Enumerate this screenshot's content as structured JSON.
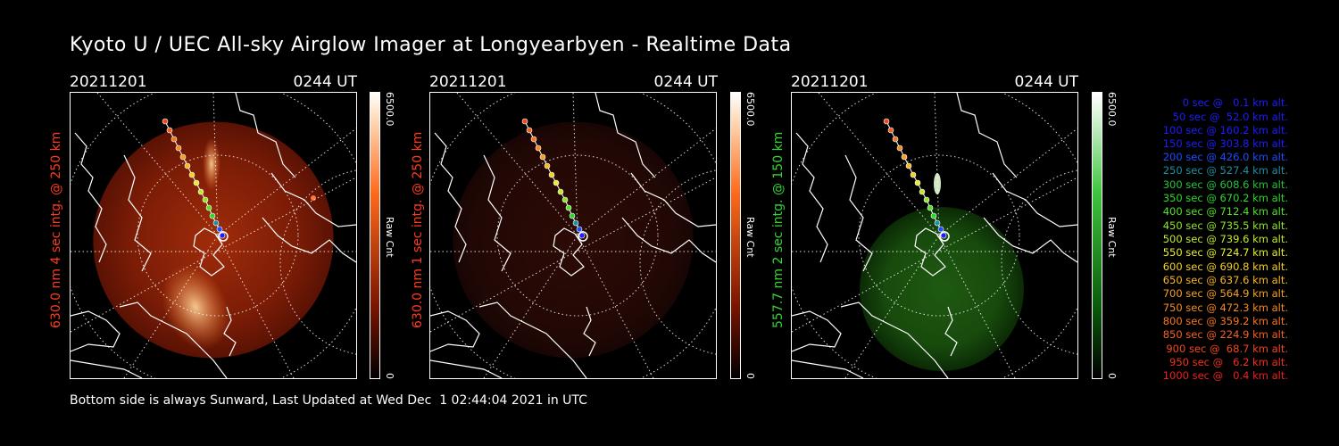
{
  "title": "Kyoto U / UEC All-sky Airglow Imager at Longyearbyen - Realtime Data",
  "footer": "Bottom side is always Sunward, Last Updated at Wed Dec  1 02:44:04 2021 in UTC",
  "panels": [
    {
      "date": "20211201",
      "time": "0244 UT",
      "label": "630.0 nm 4 sec intg. @ 250 km",
      "label_color": "#ff3b1f",
      "cbar_max": "6500.0",
      "cbar_min": "0",
      "cbar_unit": "Raw Cnt",
      "colormap": "red",
      "intensity": "bright"
    },
    {
      "date": "20211201",
      "time": "0244 UT",
      "label": "630.0 nm 1 sec intg. @ 250 km",
      "label_color": "#ff3b1f",
      "cbar_max": "6500.0",
      "cbar_min": "0",
      "cbar_unit": "Raw Cnt",
      "colormap": "red",
      "intensity": "dim"
    },
    {
      "date": "20211201",
      "time": "0244 UT",
      "label": "557.7 nm 2 sec intg. @ 150 km",
      "label_color": "#35d435",
      "cbar_max": "6500.0",
      "cbar_min": "0",
      "cbar_unit": "Raw Cnt",
      "colormap": "green",
      "intensity": "dim"
    }
  ],
  "legend": [
    {
      "text": "0 sec @   0.1 km alt.",
      "color": "#1d1dff"
    },
    {
      "text": "50 sec @  52.0 km alt.",
      "color": "#1d1dff"
    },
    {
      "text": "100 sec @ 160.2 km alt.",
      "color": "#1d1dff"
    },
    {
      "text": "150 sec @ 303.8 km alt.",
      "color": "#1d1dff"
    },
    {
      "text": "200 sec @ 426.0 km alt.",
      "color": "#1d4dff"
    },
    {
      "text": "250 sec @ 527.4 km alt.",
      "color": "#1e8fa0"
    },
    {
      "text": "300 sec @ 608.6 km alt.",
      "color": "#22c43a"
    },
    {
      "text": "350 sec @ 670.2 km alt.",
      "color": "#2bd82b"
    },
    {
      "text": "400 sec @ 712.4 km alt.",
      "color": "#54e02a"
    },
    {
      "text": "450 sec @ 735.5 km alt.",
      "color": "#8fe52a"
    },
    {
      "text": "500 sec @ 739.6 km alt.",
      "color": "#c2ea2a"
    },
    {
      "text": "550 sec @ 724.7 km alt.",
      "color": "#e8ee2a"
    },
    {
      "text": "600 sec @ 690.8 km alt.",
      "color": "#f5d21e"
    },
    {
      "text": "650 sec @ 637.6 km alt.",
      "color": "#f8b81e"
    },
    {
      "text": "700 sec @ 564.9 km alt.",
      "color": "#f8a01e"
    },
    {
      "text": "750 sec @ 472.3 km alt.",
      "color": "#f88a1e"
    },
    {
      "text": "800 sec @ 359.2 km alt.",
      "color": "#f8761e"
    },
    {
      "text": "850 sec @ 224.9 km alt.",
      "color": "#f8601e"
    },
    {
      "text": "900 sec @  68.7 km alt.",
      "color": "#f5471e"
    },
    {
      "text": "950 sec @   6.2 km alt.",
      "color": "#f2301e"
    },
    {
      "text": "1000 sec @   0.4 km alt.",
      "color": "#ef1f1e"
    }
  ]
}
